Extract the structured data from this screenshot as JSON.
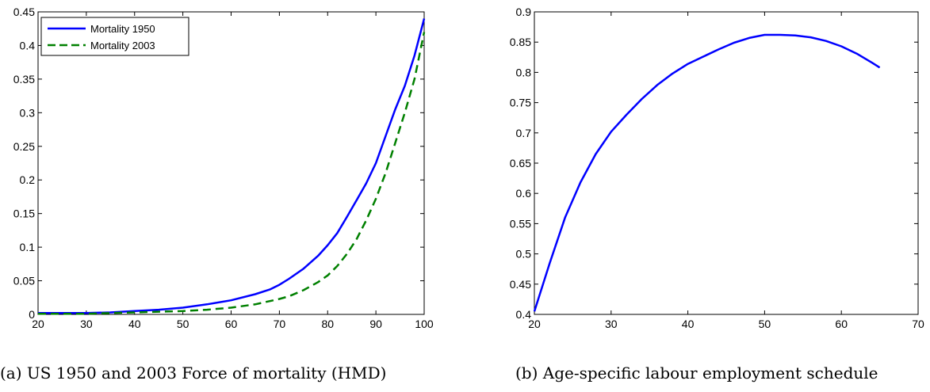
{
  "chart_data": [
    {
      "type": "line",
      "caption": "(a) US 1950 and 2003 Force of mortality (HMD)",
      "xlim": [
        20,
        100
      ],
      "ylim": [
        0,
        0.45
      ],
      "xticks": [
        "20",
        "30",
        "40",
        "50",
        "60",
        "70",
        "80",
        "90",
        "100"
      ],
      "yticks": [
        "0",
        "0.05",
        "0.1",
        "0.15",
        "0.2",
        "0.25",
        "0.3",
        "0.35",
        "0.4",
        "0.45"
      ],
      "legend": "top-left",
      "grid": false,
      "series": [
        {
          "name": "Mortality 1950",
          "color": "#0000ff",
          "dash": "solid",
          "x": [
            20,
            25,
            30,
            35,
            40,
            45,
            50,
            55,
            60,
            65,
            68,
            70,
            72,
            75,
            78,
            80,
            82,
            84,
            86,
            88,
            90,
            92,
            94,
            96,
            98,
            100
          ],
          "y": [
            0.002,
            0.002,
            0.002,
            0.003,
            0.005,
            0.007,
            0.01,
            0.015,
            0.021,
            0.03,
            0.037,
            0.044,
            0.053,
            0.068,
            0.087,
            0.103,
            0.121,
            0.145,
            0.17,
            0.195,
            0.225,
            0.265,
            0.305,
            0.34,
            0.385,
            0.44
          ]
        },
        {
          "name": "Mortality 2003",
          "color": "#008000",
          "dash": "dashed",
          "x": [
            20,
            25,
            30,
            35,
            40,
            45,
            50,
            55,
            60,
            65,
            70,
            72,
            75,
            78,
            80,
            82,
            84,
            86,
            88,
            90,
            92,
            94,
            96,
            98,
            100
          ],
          "y": [
            0.001,
            0.001,
            0.001,
            0.002,
            0.003,
            0.004,
            0.005,
            0.007,
            0.01,
            0.015,
            0.023,
            0.027,
            0.036,
            0.048,
            0.058,
            0.072,
            0.09,
            0.112,
            0.14,
            0.172,
            0.21,
            0.255,
            0.3,
            0.35,
            0.42
          ]
        }
      ]
    },
    {
      "type": "line",
      "caption": "(b) Age-specific labour employment schedule",
      "xlim": [
        20,
        70
      ],
      "ylim": [
        0.4,
        0.9
      ],
      "xticks": [
        "20",
        "30",
        "40",
        "50",
        "60",
        "70"
      ],
      "yticks": [
        "0.4",
        "0.45",
        "0.5",
        "0.55",
        "0.6",
        "0.65",
        "0.7",
        "0.75",
        "0.8",
        "0.85",
        "0.9"
      ],
      "grid": false,
      "series": [
        {
          "color": "#0000ff",
          "dash": "solid",
          "x": [
            20,
            22,
            24,
            26,
            28,
            30,
            32,
            34,
            36,
            38,
            40,
            42,
            44,
            46,
            48,
            50,
            52,
            54,
            56,
            58,
            60,
            62,
            64,
            65
          ],
          "y": [
            0.405,
            0.485,
            0.56,
            0.618,
            0.665,
            0.702,
            0.73,
            0.756,
            0.779,
            0.798,
            0.814,
            0.826,
            0.838,
            0.849,
            0.857,
            0.862,
            0.862,
            0.861,
            0.858,
            0.852,
            0.843,
            0.831,
            0.816,
            0.808
          ]
        }
      ]
    }
  ]
}
